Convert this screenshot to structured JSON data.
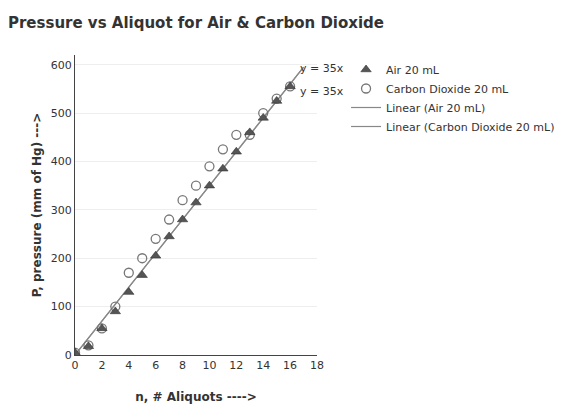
{
  "chart_data": {
    "type": "scatter",
    "title": "Pressure vs Aliquot for Air & Carbon Dioxide",
    "xlabel": "n, # Aliquots ---->",
    "ylabel": "P, pressure (mm of Hg) --->",
    "xlim": [
      0,
      18
    ],
    "ylim": [
      0,
      620
    ],
    "xticks": [
      0,
      2,
      4,
      6,
      8,
      10,
      12,
      14,
      16,
      18
    ],
    "yticks": [
      0,
      100,
      200,
      300,
      400,
      500,
      600
    ],
    "grid": "y",
    "legend": "right",
    "series": [
      {
        "name": "Air 20 mL",
        "type": "scatter",
        "marker": "triangle-up",
        "color": "#555555",
        "x": [
          0,
          1,
          2,
          3,
          4,
          5,
          6,
          7,
          8,
          9,
          10,
          11,
          12,
          13,
          14,
          15,
          16
        ],
        "values": [
          5,
          18,
          55,
          90,
          130,
          165,
          205,
          245,
          280,
          315,
          350,
          385,
          420,
          460,
          490,
          525,
          555
        ]
      },
      {
        "name": "Carbon Dioxide 20 mL",
        "type": "scatter",
        "marker": "circle-open",
        "color": "#777777",
        "x": [
          0,
          1,
          2,
          3,
          4,
          5,
          6,
          7,
          8,
          9,
          10,
          11,
          12,
          13,
          14,
          15,
          16
        ],
        "values": [
          5,
          20,
          55,
          100,
          170,
          200,
          240,
          280,
          320,
          350,
          390,
          425,
          455,
          455,
          500,
          530,
          555
        ]
      },
      {
        "name": "Linear (Air 20 mL)",
        "type": "line",
        "line_style": "solid",
        "color": "#888888",
        "x": [
          0,
          17
        ],
        "values": [
          0,
          595
        ]
      },
      {
        "name": "Linear (Carbon Dioxide 20 mL)",
        "type": "line",
        "line_style": "solid",
        "color": "#888888",
        "x": [
          0,
          17
        ],
        "values": [
          0,
          595
        ]
      }
    ],
    "annotations": [
      {
        "text": "y = 35x",
        "x": 16.6,
        "y": 593
      },
      {
        "text": "y = 35x",
        "x": 16.6,
        "y": 545
      }
    ]
  }
}
